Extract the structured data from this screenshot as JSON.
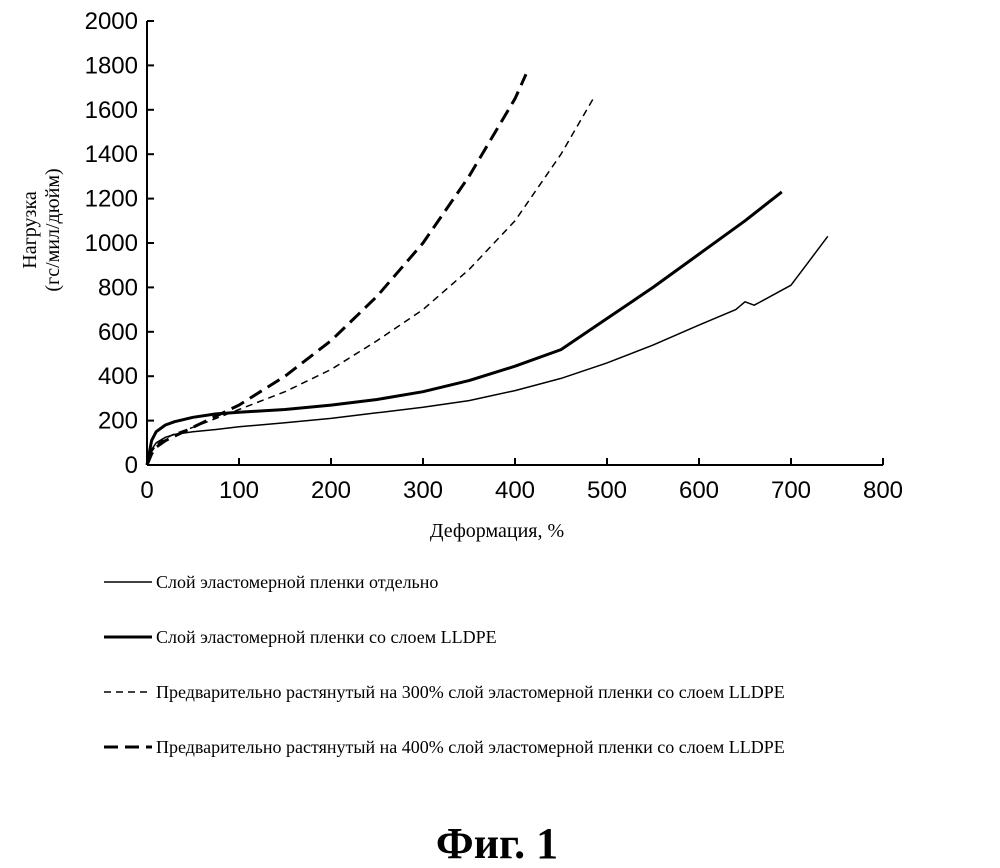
{
  "chart_data": {
    "type": "line",
    "xlabel": "Деформация, %",
    "ylabel_line1": "Нагрузка",
    "ylabel_line2": "(гс/мил/дюйм)",
    "xlim": [
      0,
      800
    ],
    "ylim": [
      0,
      2000
    ],
    "xticks": [
      0,
      100,
      200,
      300,
      400,
      500,
      600,
      700,
      800
    ],
    "yticks": [
      0,
      200,
      400,
      600,
      800,
      1000,
      1200,
      1400,
      1600,
      1800,
      2000
    ],
    "grid": false,
    "legend_position": "bottom",
    "series": [
      {
        "name": "Слой эластомерной пленки отдельно",
        "style": "thin-solid",
        "x": [
          0,
          5,
          10,
          20,
          30,
          50,
          75,
          100,
          150,
          200,
          250,
          300,
          350,
          400,
          450,
          500,
          550,
          600,
          640,
          650,
          660,
          700,
          720,
          740
        ],
        "y": [
          0,
          70,
          100,
          125,
          138,
          150,
          160,
          172,
          190,
          210,
          235,
          260,
          290,
          335,
          390,
          460,
          540,
          630,
          700,
          735,
          720,
          810,
          920,
          1030
        ]
      },
      {
        "name": "Слой эластомерной пленки со слоем LLDPE",
        "style": "thick-solid",
        "x": [
          0,
          5,
          10,
          20,
          30,
          50,
          75,
          100,
          150,
          200,
          250,
          300,
          350,
          400,
          450,
          500,
          550,
          600,
          650,
          690
        ],
        "y": [
          0,
          110,
          150,
          180,
          195,
          215,
          230,
          238,
          250,
          270,
          295,
          330,
          380,
          445,
          520,
          660,
          800,
          950,
          1100,
          1230
        ]
      },
      {
        "name": "Предварительно растянутый на 300% слой эластомерной пленки со слоем LLDPE",
        "style": "thin-dashed",
        "x": [
          0,
          5,
          10,
          20,
          30,
          50,
          75,
          100,
          150,
          200,
          250,
          300,
          350,
          400,
          450,
          485
        ],
        "y": [
          0,
          60,
          90,
          120,
          140,
          170,
          210,
          250,
          330,
          430,
          560,
          700,
          880,
          1100,
          1400,
          1650
        ]
      },
      {
        "name": "Предварительно растянутый на 400% слой эластомерной пленки со слоем LLDPE",
        "style": "thick-dashed",
        "x": [
          0,
          5,
          10,
          20,
          30,
          50,
          75,
          100,
          150,
          200,
          250,
          300,
          350,
          400,
          412
        ],
        "y": [
          0,
          50,
          80,
          110,
          130,
          170,
          220,
          270,
          400,
          560,
          760,
          1000,
          1300,
          1650,
          1760
        ]
      }
    ]
  },
  "caption": "Фиг. 1"
}
